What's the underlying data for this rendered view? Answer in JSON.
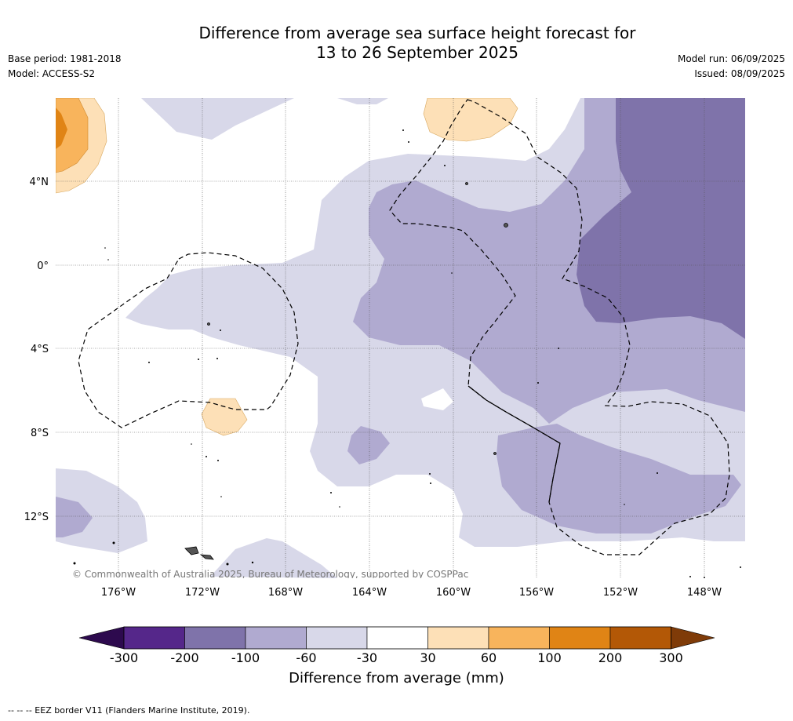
{
  "title": {
    "line1": "Difference from average sea surface height forecast for",
    "line2": "13 to 26 September 2025"
  },
  "meta": {
    "base_period": "Base period: 1981-2018",
    "model": "Model: ACCESS-S2",
    "model_run": "Model run: 06/09/2025",
    "issued": "Issued: 08/09/2025"
  },
  "map": {
    "lon_labels": [
      "176°W",
      "172°W",
      "168°W",
      "164°W",
      "160°W",
      "156°W",
      "152°W",
      "148°W"
    ],
    "lat_labels": [
      "4°N",
      "0°",
      "4°S",
      "8°S",
      "12°S"
    ],
    "copyright": "© Commonwealth of Australia 2025, Bureau of Meteorology, supported by COSPPac"
  },
  "colorbar": {
    "title": "Difference from average (mm)",
    "tick_labels": [
      "-300",
      "-200",
      "-100",
      "-60",
      "-30",
      "30",
      "60",
      "100",
      "200",
      "300"
    ],
    "colors": {
      "below_min": "#2d0a4e",
      "minus300_minus200": "#55278a",
      "minus200_minus100": "#7f73aa",
      "minus100_minus60": "#b0aad0",
      "minus60_minus30": "#d8d8e9",
      "minus30_30": "#ffffff",
      "30_60": "#fde0b7",
      "60_100": "#f8b45c",
      "100_200": "#e08415",
      "200_300": "#b35806",
      "above_max": "#7f3b08"
    }
  },
  "footnote": "--  --  -- EEZ border V11 (Flanders Marine Institute, 2019)."
}
